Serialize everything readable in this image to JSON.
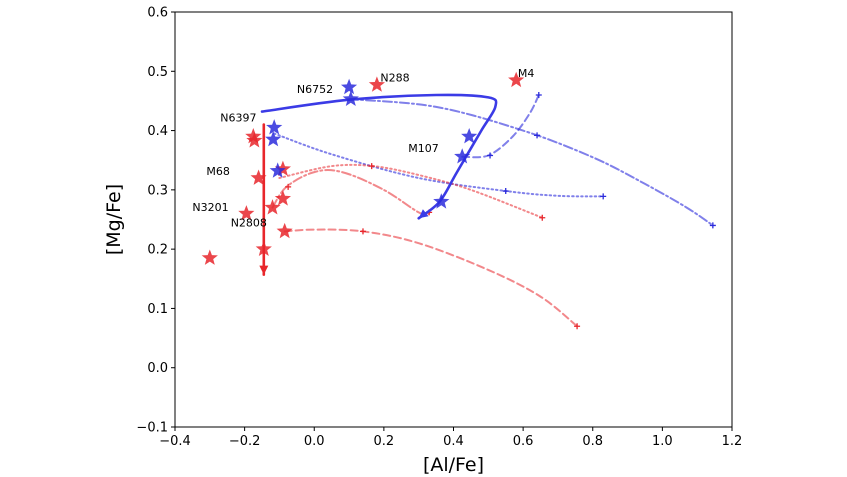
{
  "chart_data": {
    "type": "scatter",
    "title": "",
    "xlabel": "[Al/Fe]",
    "ylabel": "[Mg/Fe]",
    "xlim": [
      -0.4,
      1.2
    ],
    "ylim": [
      -0.1,
      0.6
    ],
    "xticks": [
      -0.4,
      -0.2,
      0.0,
      0.2,
      0.4,
      0.6,
      0.8,
      1.0,
      1.2
    ],
    "xtick_labels": [
      "−0.4",
      "−0.2",
      "0.0",
      "0.2",
      "0.4",
      "0.6",
      "0.8",
      "1.0",
      "1.2"
    ],
    "yticks": [
      -0.1,
      0.0,
      0.1,
      0.2,
      0.3,
      0.4,
      0.5,
      0.6
    ],
    "ytick_labels": [
      "−0.1",
      "0.0",
      "0.1",
      "0.2",
      "0.3",
      "0.4",
      "0.5",
      "0.6"
    ],
    "grid": false,
    "colors": {
      "red": "#e8262b",
      "blue": "#2b2bdc",
      "red_light": "#f08080",
      "blue_light": "#8888e8"
    },
    "stars_red": [
      {
        "x": 0.18,
        "y": 0.477
      },
      {
        "x": 0.58,
        "y": 0.485
      },
      {
        "x": -0.175,
        "y": 0.39
      },
      {
        "x": -0.172,
        "y": 0.383
      },
      {
        "x": -0.09,
        "y": 0.335
      },
      {
        "x": -0.16,
        "y": 0.32
      },
      {
        "x": -0.09,
        "y": 0.285
      },
      {
        "x": -0.12,
        "y": 0.27
      },
      {
        "x": -0.195,
        "y": 0.26
      },
      {
        "x": -0.085,
        "y": 0.23
      },
      {
        "x": -0.145,
        "y": 0.2
      },
      {
        "x": -0.3,
        "y": 0.185
      }
    ],
    "stars_blue": [
      {
        "x": 0.1,
        "y": 0.473
      },
      {
        "x": 0.105,
        "y": 0.453
      },
      {
        "x": -0.115,
        "y": 0.405
      },
      {
        "x": -0.118,
        "y": 0.385
      },
      {
        "x": -0.105,
        "y": 0.332
      },
      {
        "x": 0.445,
        "y": 0.39
      },
      {
        "x": 0.425,
        "y": 0.356
      },
      {
        "x": 0.365,
        "y": 0.28
      }
    ],
    "labels": [
      {
        "text": "N288",
        "x": 0.19,
        "y": 0.483
      },
      {
        "text": "M4",
        "x": 0.585,
        "y": 0.49
      },
      {
        "text": "N6752",
        "x": -0.05,
        "y": 0.463
      },
      {
        "text": "N6397",
        "x": -0.27,
        "y": 0.415
      },
      {
        "text": "M107",
        "x": 0.27,
        "y": 0.364
      },
      {
        "text": "M68",
        "x": -0.31,
        "y": 0.325
      },
      {
        "text": "N3201",
        "x": -0.35,
        "y": 0.264
      },
      {
        "text": "N2808",
        "x": -0.24,
        "y": 0.238
      }
    ],
    "series": [
      {
        "name": "N6752",
        "color": "#2b2bdc",
        "opacity": 0.6,
        "style": "dashdot",
        "x": [
          0.1,
          0.35,
          0.6,
          0.8,
          0.95,
          1.07,
          1.145
        ],
        "y": [
          0.453,
          0.44,
          0.4,
          0.355,
          0.31,
          0.27,
          0.24
        ],
        "markers": [
          0.64,
          1.145
        ],
        "marker_y": [
          0.392,
          0.24
        ]
      },
      {
        "name": "N6397",
        "color": "#2b2bdc",
        "opacity": 0.6,
        "style": "dotted",
        "x": [
          -0.115,
          0.05,
          0.3,
          0.55,
          0.7,
          0.83
        ],
        "y": [
          0.395,
          0.36,
          0.32,
          0.298,
          0.29,
          0.289
        ],
        "markers": [
          0.55,
          0.83
        ],
        "marker_y": [
          0.298,
          0.289
        ]
      },
      {
        "name": "M107",
        "color": "#2b2bdc",
        "opacity": 0.6,
        "style": "dashed",
        "x": [
          0.425,
          0.5,
          0.57,
          0.62,
          0.645
        ],
        "y": [
          0.356,
          0.358,
          0.39,
          0.43,
          0.46
        ],
        "markers": [
          0.505,
          0.645
        ],
        "marker_y": [
          0.358,
          0.46
        ]
      },
      {
        "name": "M68",
        "color": "#e8262b",
        "opacity": 0.55,
        "style": "dotted",
        "x": [
          -0.1,
          0.05,
          0.17,
          0.3,
          0.45,
          0.655
        ],
        "y": [
          0.32,
          0.34,
          0.34,
          0.325,
          0.3,
          0.253
        ],
        "markers": [
          0.165,
          0.655
        ],
        "marker_y": [
          0.34,
          0.253
        ]
      },
      {
        "name": "N3201",
        "color": "#e8262b",
        "opacity": 0.55,
        "style": "dashdot",
        "x": [
          -0.12,
          -0.08,
          0.0,
          0.08,
          0.2,
          0.3,
          0.33
        ],
        "y": [
          0.27,
          0.305,
          0.33,
          0.33,
          0.3,
          0.262,
          0.26
        ],
        "markers": [
          -0.075,
          0.33
        ],
        "marker_y": [
          0.305,
          0.262
        ]
      },
      {
        "name": "N2808",
        "color": "#e8262b",
        "opacity": 0.55,
        "style": "dashed",
        "x": [
          -0.085,
          0.0,
          0.14,
          0.3,
          0.5,
          0.65,
          0.755
        ],
        "y": [
          0.23,
          0.233,
          0.23,
          0.21,
          0.165,
          0.12,
          0.07
        ],
        "markers": [
          0.14,
          0.755
        ],
        "marker_y": [
          0.23,
          0.07
        ]
      }
    ],
    "arrows": [
      {
        "name": "blue-loop",
        "color": "#3b3be6",
        "x": [
          -0.15,
          0.1,
          0.35,
          0.5,
          0.52,
          0.48,
          0.41,
          0.36,
          0.3
        ],
        "y": [
          0.432,
          0.452,
          0.46,
          0.456,
          0.44,
          0.4,
          0.33,
          0.28,
          0.252
        ]
      },
      {
        "name": "red-vertical",
        "color": "#e8262b",
        "x": [
          -0.145,
          -0.145
        ],
        "y": [
          0.41,
          0.157
        ]
      }
    ]
  }
}
